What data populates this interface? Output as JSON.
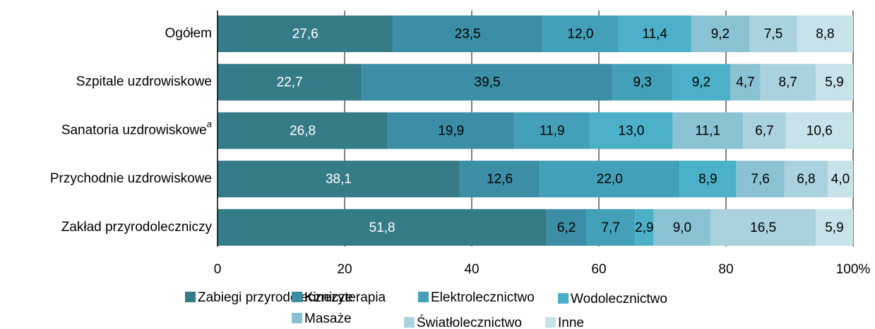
{
  "chart_data": {
    "type": "stacked-bar-horizontal",
    "categories": [
      "Ogółem",
      "Szpitale uzdrowiskowe",
      "Sanatoria uzdrowiskowe",
      "Przychodnie uzdrowiskowe",
      "Zakład przyrodoleczniczy"
    ],
    "category_footnotes": {
      "2": "a"
    },
    "series": [
      {
        "name": "Zabiegi przyrodolecznicze",
        "color": "#367b88",
        "values": [
          27.6,
          22.7,
          26.8,
          38.1,
          51.8
        ],
        "value_labels": [
          "27,6",
          "22,7",
          "26,8",
          "38,1",
          "51,8"
        ]
      },
      {
        "name": "Kinezyterapia",
        "color": "#3b8ea5",
        "values": [
          23.5,
          39.5,
          19.9,
          12.6,
          6.2
        ],
        "value_labels": [
          "23,5",
          "39,5",
          "19,9",
          "12,6",
          "6,2"
        ]
      },
      {
        "name": "Elektrolecznictwo",
        "color": "#44a0b8",
        "values": [
          12.0,
          9.3,
          11.9,
          22.0,
          7.7
        ],
        "value_labels": [
          "12,0",
          "9,3",
          "11,9",
          "22,0",
          "7,7"
        ]
      },
      {
        "name": "Wodolecznictwo",
        "color": "#4bb0c8",
        "values": [
          11.4,
          9.2,
          13.0,
          8.9,
          2.9
        ],
        "value_labels": [
          "11,4",
          "9,2",
          "13,0",
          "8,9",
          "2,9"
        ]
      },
      {
        "name": "Masaże",
        "color": "#8ac2d4",
        "values": [
          9.2,
          4.7,
          11.1,
          7.6,
          9.0
        ],
        "value_labels": [
          "9,2",
          "4,7",
          "11,1",
          "7,6",
          "9,0"
        ]
      },
      {
        "name": "Światłolecznictwo",
        "color": "#a9d1de",
        "values": [
          7.5,
          8.7,
          6.7,
          6.8,
          16.5
        ],
        "value_labels": [
          "7,5",
          "8,7",
          "6,7",
          "6,8",
          "16,5"
        ]
      },
      {
        "name": "Inne",
        "color": "#c8e2ea",
        "values": [
          8.8,
          5.9,
          10.6,
          4.0,
          5.9
        ],
        "value_labels": [
          "8,8",
          "5,9",
          "10,6",
          "4,0",
          "5,9"
        ]
      }
    ],
    "xlim": [
      0,
      100
    ],
    "xticks": [
      0,
      20,
      40,
      60,
      80,
      {
        "value": 100,
        "label": "100%"
      }
    ],
    "legend": "bottom"
  }
}
